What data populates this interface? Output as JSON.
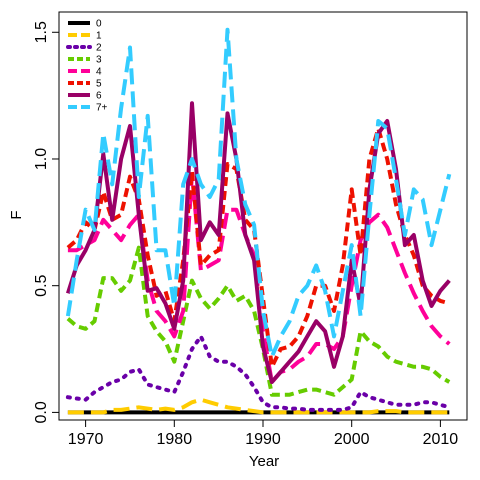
{
  "chart_data": {
    "type": "line",
    "xlabel": "Year",
    "ylabel": "F",
    "xlim": [
      1967,
      2013
    ],
    "ylim": [
      -0.03,
      1.58
    ],
    "xticks": [
      1970,
      1980,
      1990,
      2000,
      2010
    ],
    "xtick_labels": [
      "1970",
      "1980",
      "1990",
      "2000",
      "2010"
    ],
    "yticks": [
      0.0,
      0.5,
      1.0,
      1.5
    ],
    "ytick_labels": [
      "0.0",
      "0.5",
      "1.0",
      "1.5"
    ],
    "grid": false,
    "legend_position": "top-left",
    "x": [
      1968,
      1969,
      1970,
      1971,
      1972,
      1973,
      1974,
      1975,
      1976,
      1977,
      1978,
      1979,
      1980,
      1981,
      1982,
      1983,
      1984,
      1985,
      1986,
      1987,
      1988,
      1989,
      1990,
      1991,
      1992,
      1993,
      1994,
      1995,
      1996,
      1997,
      1998,
      1999,
      2000,
      2001,
      2002,
      2003,
      2004,
      2005,
      2006,
      2007,
      2008,
      2009,
      2010,
      2011
    ],
    "series": [
      {
        "name": "0",
        "color": "#000000",
        "dash": "solid",
        "values": [
          0.0,
          0.0,
          0.0,
          0.0,
          0.0,
          0.0,
          0.0,
          0.0,
          0.0,
          0.0,
          0.0,
          0.0,
          0.0,
          0.0,
          0.0,
          0.0,
          0.0,
          0.0,
          0.0,
          0.0,
          0.0,
          0.0,
          0.0,
          0.0,
          0.0,
          0.0,
          0.0,
          0.0,
          0.0,
          0.0,
          0.0,
          0.0,
          0.0,
          0.0,
          0.0,
          0.0,
          0.0,
          0.0,
          0.0,
          0.0,
          0.0,
          0.0,
          0.0,
          0.0
        ]
      },
      {
        "name": "1",
        "color": "#FFCC00",
        "dash": "longdash",
        "values": [
          0.0,
          0.0,
          0.0,
          0.0,
          0.0,
          0.01,
          0.01,
          0.015,
          0.02,
          0.015,
          0.01,
          0.015,
          0.01,
          0.02,
          0.04,
          0.05,
          0.04,
          0.03,
          0.02,
          0.015,
          0.01,
          0.005,
          0.0,
          0.0,
          0.0,
          0.0,
          0.0,
          0.0,
          0.0,
          0.0,
          0.0,
          0.0,
          0.0,
          0.0,
          0.0,
          0.005,
          0.005,
          0.005,
          0.0,
          0.0,
          0.0,
          0.0,
          0.0,
          0.0
        ]
      },
      {
        "name": "2",
        "color": "#6A00A8",
        "dash": "dotted",
        "values": [
          0.06,
          0.055,
          0.05,
          0.08,
          0.1,
          0.12,
          0.13,
          0.16,
          0.17,
          0.11,
          0.1,
          0.09,
          0.08,
          0.16,
          0.25,
          0.3,
          0.22,
          0.2,
          0.2,
          0.18,
          0.15,
          0.1,
          0.04,
          0.02,
          0.02,
          0.015,
          0.015,
          0.01,
          0.01,
          0.01,
          0.01,
          0.01,
          0.02,
          0.08,
          0.06,
          0.05,
          0.04,
          0.03,
          0.03,
          0.03,
          0.04,
          0.04,
          0.03,
          0.02
        ]
      },
      {
        "name": "3",
        "color": "#66CC00",
        "dash": "dashed",
        "values": [
          0.37,
          0.34,
          0.33,
          0.36,
          0.53,
          0.53,
          0.48,
          0.52,
          0.65,
          0.38,
          0.32,
          0.28,
          0.2,
          0.36,
          0.52,
          0.45,
          0.41,
          0.45,
          0.5,
          0.44,
          0.46,
          0.4,
          0.25,
          0.07,
          0.07,
          0.07,
          0.08,
          0.09,
          0.09,
          0.08,
          0.07,
          0.1,
          0.13,
          0.32,
          0.28,
          0.26,
          0.22,
          0.2,
          0.19,
          0.18,
          0.18,
          0.17,
          0.14,
          0.12
        ]
      },
      {
        "name": "4",
        "color": "#FF0099",
        "dash": "longdash",
        "values": [
          0.64,
          0.64,
          0.66,
          0.68,
          0.76,
          0.72,
          0.68,
          0.74,
          0.78,
          0.52,
          0.4,
          0.36,
          0.3,
          0.4,
          0.94,
          0.56,
          0.58,
          0.6,
          0.8,
          0.8,
          0.7,
          0.62,
          0.32,
          0.12,
          0.16,
          0.17,
          0.2,
          0.22,
          0.27,
          0.27,
          0.25,
          0.3,
          0.5,
          0.68,
          0.75,
          0.78,
          0.73,
          0.64,
          0.55,
          0.47,
          0.4,
          0.34,
          0.3,
          0.27
        ]
      },
      {
        "name": "5",
        "color": "#EE1100",
        "dash": "dashed",
        "values": [
          0.65,
          0.68,
          0.75,
          0.72,
          0.87,
          0.76,
          0.78,
          0.93,
          0.84,
          0.62,
          0.46,
          0.48,
          0.36,
          0.6,
          0.95,
          0.58,
          0.62,
          0.64,
          0.98,
          0.96,
          0.76,
          0.72,
          0.45,
          0.18,
          0.25,
          0.26,
          0.3,
          0.38,
          0.5,
          0.5,
          0.4,
          0.58,
          0.88,
          0.62,
          1.0,
          1.12,
          1.0,
          0.82,
          0.7,
          0.62,
          0.5,
          0.46,
          0.44,
          0.43
        ]
      },
      {
        "name": "6",
        "color": "#990066",
        "dash": "solid",
        "values": [
          0.47,
          0.58,
          0.64,
          0.72,
          1.02,
          0.76,
          1.0,
          1.13,
          0.78,
          0.48,
          0.49,
          0.43,
          0.33,
          0.52,
          1.22,
          0.68,
          0.75,
          0.7,
          1.18,
          1.0,
          0.7,
          0.6,
          0.26,
          0.12,
          0.16,
          0.2,
          0.24,
          0.3,
          0.36,
          0.32,
          0.18,
          0.3,
          0.6,
          0.42,
          0.88,
          1.1,
          1.15,
          0.96,
          0.66,
          0.7,
          0.52,
          0.42,
          0.48,
          0.52
        ]
      },
      {
        "name": "7+",
        "color": "#33CCFF",
        "dash": "longdash",
        "values": [
          0.38,
          0.6,
          0.8,
          0.72,
          1.1,
          0.9,
          1.2,
          1.44,
          0.85,
          1.17,
          0.64,
          0.64,
          0.42,
          0.9,
          1.0,
          0.9,
          0.85,
          0.92,
          1.51,
          1.0,
          0.82,
          0.74,
          0.4,
          0.22,
          0.3,
          0.36,
          0.46,
          0.5,
          0.58,
          0.48,
          0.3,
          0.48,
          0.66,
          0.38,
          0.78,
          1.15,
          1.12,
          0.92,
          0.7,
          0.88,
          0.84,
          0.66,
          0.8,
          0.94
        ]
      }
    ]
  }
}
